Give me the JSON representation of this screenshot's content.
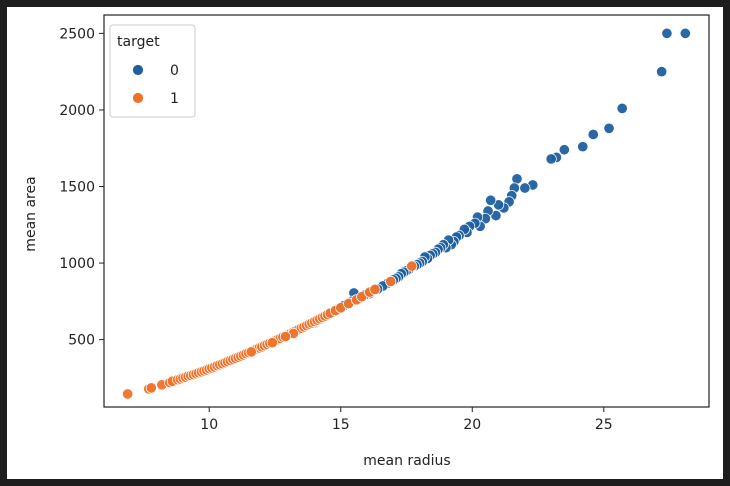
{
  "chart_data": {
    "type": "scatter",
    "title": "",
    "xlabel": "mean radius",
    "ylabel": "mean area",
    "xlim": [
      6.0,
      29.0
    ],
    "ylim": [
      60,
      2620
    ],
    "xticks": [
      10,
      15,
      20,
      25
    ],
    "yticks": [
      500,
      1000,
      1500,
      2000,
      2500
    ],
    "grid": false,
    "legend": {
      "title": "target",
      "placement": "top-left",
      "entries": [
        {
          "label": "0",
          "color": "#1f5fa0"
        },
        {
          "label": "1",
          "color": "#f07228"
        }
      ]
    },
    "series": [
      {
        "label": "0",
        "color": "#1f5fa0",
        "points": [
          [
            28.1,
            2500
          ],
          [
            27.4,
            2500
          ],
          [
            27.2,
            2250
          ],
          [
            25.7,
            2010
          ],
          [
            25.2,
            1880
          ],
          [
            24.6,
            1840
          ],
          [
            24.2,
            1760
          ],
          [
            23.5,
            1740
          ],
          [
            23.2,
            1690
          ],
          [
            23.0,
            1680
          ],
          [
            22.3,
            1510
          ],
          [
            22.0,
            1490
          ],
          [
            21.7,
            1550
          ],
          [
            21.6,
            1490
          ],
          [
            21.5,
            1440
          ],
          [
            21.4,
            1400
          ],
          [
            21.2,
            1360
          ],
          [
            21.0,
            1380
          ],
          [
            20.9,
            1310
          ],
          [
            20.7,
            1410
          ],
          [
            20.6,
            1340
          ],
          [
            20.5,
            1290
          ],
          [
            20.3,
            1240
          ],
          [
            20.2,
            1300
          ],
          [
            20.1,
            1260
          ],
          [
            19.9,
            1240
          ],
          [
            19.8,
            1200
          ],
          [
            19.7,
            1220
          ],
          [
            19.5,
            1180
          ],
          [
            19.4,
            1170
          ],
          [
            19.3,
            1140
          ],
          [
            19.2,
            1120
          ],
          [
            19.1,
            1150
          ],
          [
            19.0,
            1100
          ],
          [
            18.9,
            1120
          ],
          [
            18.8,
            1100
          ],
          [
            18.7,
            1090
          ],
          [
            18.6,
            1070
          ],
          [
            18.5,
            1060
          ],
          [
            18.4,
            1050
          ],
          [
            18.3,
            1030
          ],
          [
            18.2,
            1040
          ],
          [
            18.1,
            1010
          ],
          [
            18.0,
            1000
          ],
          [
            17.9,
            990
          ],
          [
            17.8,
            980
          ],
          [
            17.7,
            975
          ],
          [
            17.6,
            960
          ],
          [
            17.5,
            950
          ],
          [
            17.4,
            940
          ],
          [
            17.3,
            930
          ],
          [
            17.2,
            910
          ],
          [
            17.1,
            900
          ],
          [
            17.0,
            890
          ],
          [
            16.9,
            880
          ],
          [
            16.8,
            870
          ],
          [
            16.6,
            850
          ],
          [
            16.4,
            830
          ],
          [
            16.1,
            800
          ],
          [
            15.9,
            790
          ],
          [
            15.7,
            770
          ],
          [
            15.5,
            805
          ],
          [
            15.4,
            750
          ],
          [
            15.3,
            740
          ],
          [
            15.2,
            730
          ],
          [
            15.1,
            720
          ],
          [
            14.9,
            700
          ],
          [
            14.7,
            680
          ],
          [
            14.5,
            660
          ],
          [
            14.3,
            645
          ],
          [
            14.2,
            630
          ],
          [
            14.0,
            610
          ]
        ]
      },
      {
        "label": "1",
        "color": "#f07228",
        "points": [
          [
            6.9,
            145
          ],
          [
            7.7,
            178
          ],
          [
            7.8,
            185
          ],
          [
            8.2,
            205
          ],
          [
            8.5,
            220
          ],
          [
            8.6,
            228
          ],
          [
            8.8,
            238
          ],
          [
            8.9,
            243
          ],
          [
            9.0,
            250
          ],
          [
            9.1,
            255
          ],
          [
            9.2,
            262
          ],
          [
            9.3,
            266
          ],
          [
            9.4,
            272
          ],
          [
            9.5,
            278
          ],
          [
            9.6,
            284
          ],
          [
            9.7,
            290
          ],
          [
            9.8,
            296
          ],
          [
            9.9,
            302
          ],
          [
            10.0,
            310
          ],
          [
            10.1,
            316
          ],
          [
            10.2,
            322
          ],
          [
            10.3,
            330
          ],
          [
            10.4,
            336
          ],
          [
            10.5,
            343
          ],
          [
            10.6,
            350
          ],
          [
            10.7,
            357
          ],
          [
            10.8,
            364
          ],
          [
            10.9,
            371
          ],
          [
            11.0,
            378
          ],
          [
            11.1,
            385
          ],
          [
            11.2,
            393
          ],
          [
            11.3,
            400
          ],
          [
            11.4,
            408
          ],
          [
            11.5,
            415
          ],
          [
            11.6,
            423
          ],
          [
            11.7,
            431
          ],
          [
            11.8,
            438
          ],
          [
            11.9,
            446
          ],
          [
            12.0,
            453
          ],
          [
            12.1,
            461
          ],
          [
            12.2,
            469
          ],
          [
            12.3,
            477
          ],
          [
            12.4,
            485
          ],
          [
            12.5,
            493
          ],
          [
            12.6,
            500
          ],
          [
            12.7,
            508
          ],
          [
            12.8,
            517
          ],
          [
            12.9,
            525
          ],
          [
            13.0,
            533
          ],
          [
            13.1,
            541
          ],
          [
            13.2,
            550
          ],
          [
            13.3,
            558
          ],
          [
            13.4,
            566
          ],
          [
            13.5,
            575
          ],
          [
            13.6,
            583
          ],
          [
            13.7,
            592
          ],
          [
            13.8,
            601
          ],
          [
            13.9,
            609
          ],
          [
            14.0,
            618
          ],
          [
            14.1,
            627
          ],
          [
            14.2,
            636
          ],
          [
            14.3,
            645
          ],
          [
            14.4,
            654
          ],
          [
            14.5,
            664
          ],
          [
            14.6,
            673
          ],
          [
            14.8,
            690
          ],
          [
            15.0,
            708
          ],
          [
            15.3,
            735
          ],
          [
            15.6,
            760
          ],
          [
            15.8,
            780
          ],
          [
            16.1,
            810
          ],
          [
            16.3,
            828
          ],
          [
            17.7,
            980
          ],
          [
            16.9,
            880
          ],
          [
            13.2,
            540
          ],
          [
            12.9,
            520
          ],
          [
            12.4,
            480
          ],
          [
            11.6,
            420
          ]
        ]
      }
    ]
  }
}
